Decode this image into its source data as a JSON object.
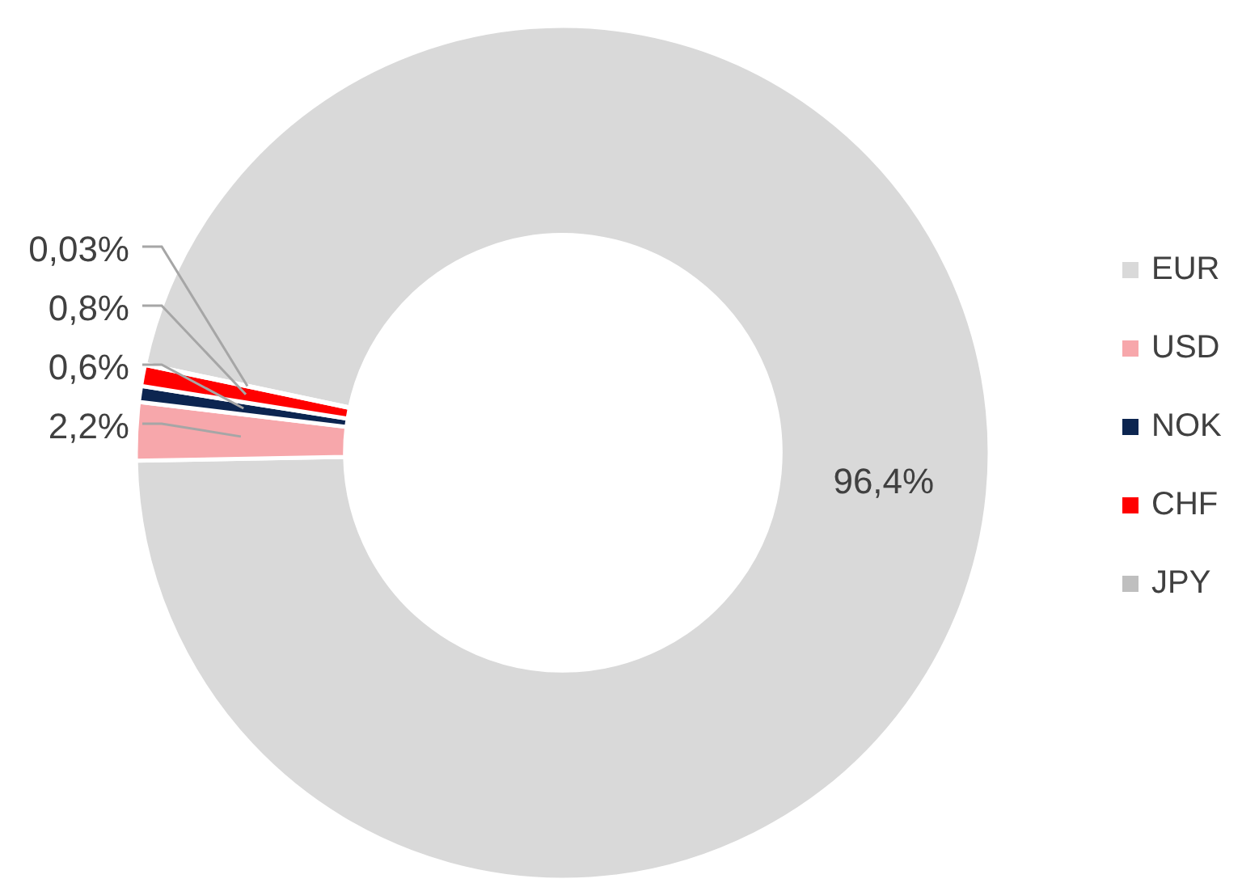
{
  "chart_data": {
    "type": "donut",
    "categories": [
      "EUR",
      "USD",
      "NOK",
      "CHF",
      "JPY"
    ],
    "values": [
      96.4,
      2.2,
      0.6,
      0.8,
      0.03
    ],
    "colors": [
      "#d9d9d9",
      "#f7a7ab",
      "#0c2550",
      "#ff0000",
      "#bfbfbf"
    ],
    "value_labels": [
      "96,4%",
      "2,2%",
      "0,6%",
      "0,8%",
      "0,03%"
    ],
    "legend": "right"
  }
}
